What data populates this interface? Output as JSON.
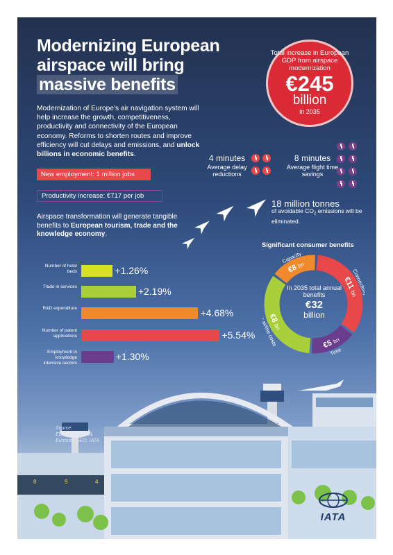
{
  "title": {
    "line1": "Modernizing European",
    "line2": "airspace will bring",
    "line3": "massive benefits"
  },
  "intro": {
    "text": "Modernization of Europe's air navigation system will help increase the growth, competitiveness, productivity and connectivity of the European economy. Reforms to shorten routes and improve efficiency will cut delays and emissions, and ",
    "bold": "unlock billions in economic benefits",
    "end": "."
  },
  "pills": {
    "employment": "New employment: 1 million jobs",
    "productivity": "Productivity increase: €717 per job"
  },
  "gdp_circle": {
    "label": "Total increase in European GDP from airspace modernization",
    "value": "€245",
    "unit": "billion",
    "year": "in 2035"
  },
  "delay": {
    "num": "4",
    "unit": "minutes",
    "label": "Average delay reductions"
  },
  "flight": {
    "num": "8",
    "unit": "minutes",
    "label": "Average flight time savings"
  },
  "co2": {
    "num": "18",
    "unit": "million tonnes",
    "label_a": "of avoidable CO",
    "label_sub": "2",
    "label_b": " emissions will be eliminated."
  },
  "tourism": {
    "text": "Airspace transformation will generate tangible benefits to ",
    "bold": "European tourism, trade and the knowledge economy",
    "end": "."
  },
  "bars": [
    {
      "label": "Number of hotel beds",
      "value": "+1.26",
      "pct": "%",
      "amount": 1.26,
      "color": "#d9e021"
    },
    {
      "label": "Trade in services",
      "value": "+2.19",
      "pct": "%",
      "amount": 2.19,
      "color": "#a9cf3a"
    },
    {
      "label": "R&D expenditure",
      "value": "+4.68",
      "pct": "%",
      "amount": 4.68,
      "color": "#f08a2c"
    },
    {
      "label": "Number of patent applications",
      "value": "+5.54",
      "pct": "%",
      "amount": 5.54,
      "color": "#e8484a"
    },
    {
      "label": "Employment in knowledge intensive sectors",
      "value": "+1.30",
      "pct": "%",
      "amount": 1.3,
      "color": "#6a3d8f"
    }
  ],
  "consumer": {
    "title": "Significant consumer benefits",
    "center_text": "In 2035 total annual benefits",
    "center_value": "€32",
    "center_unit": "billion",
    "segments": [
      {
        "name": "Connectivity",
        "value": "€11",
        "unit": "bn",
        "color": "#e8484a"
      },
      {
        "name": "Time",
        "value": "€5",
        "unit": "bn",
        "color": "#6a3d8f"
      },
      {
        "name": "Lower airline costs",
        "value": "€8",
        "unit": "bn",
        "color": "#a9cf3a"
      },
      {
        "name": "Capacity",
        "value": "€8",
        "unit": "bn",
        "color": "#f08a2c"
      }
    ]
  },
  "source": {
    "label": "Source:",
    "line1": "EUROCONTROL",
    "line2": "Eurostat, SEO, IATA"
  },
  "gates": [
    "8",
    "9",
    "4"
  ],
  "logo": "IATA",
  "colors": {
    "red": "#e8484a",
    "purple": "#6a3d8f",
    "orange": "#f08a2c",
    "green": "#a9cf3a",
    "navy": "#23314f"
  }
}
